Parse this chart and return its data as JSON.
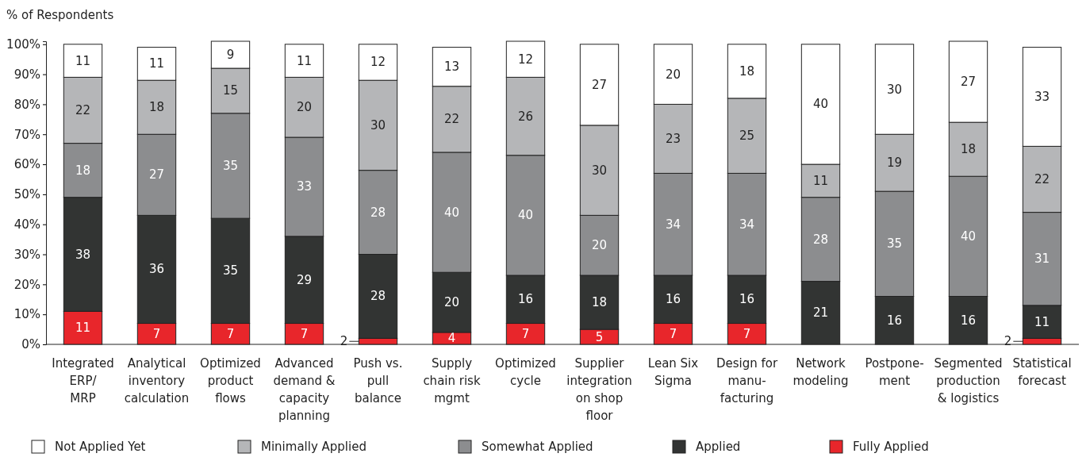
{
  "chart_data": {
    "type": "bar",
    "stacked": true,
    "ylabel": "% of Respondents",
    "categories": [
      "Integrated\nERP/\nMRP",
      "Analytical\ninventory\ncalculation",
      "Optimized\nproduct\nflows",
      "Advanced\ndemand &\ncapacity\nplanning",
      "Push vs.\npull\nbalance",
      "Supply\nchain risk\nmgmt",
      "Optimized\ncycle",
      "Supplier\nintegration\non shop\nfloor",
      "Lean Six\nSigma",
      "Design for\nmanu-\nfacturing",
      "Network\nmodeling",
      "Postpone-\nment",
      "Segmented\nproduction\n& logistics",
      "Statistical\nforecast"
    ],
    "series": [
      {
        "name": "Fully Applied",
        "color": "#e8262b",
        "values": [
          11,
          7,
          7,
          7,
          2,
          4,
          7,
          5,
          7,
          7,
          null,
          null,
          null,
          2
        ]
      },
      {
        "name": "Applied",
        "color": "#323433",
        "values": [
          38,
          36,
          35,
          29,
          28,
          20,
          16,
          18,
          16,
          16,
          21,
          16,
          16,
          11
        ]
      },
      {
        "name": "Somewhat Applied",
        "color": "#8c8d8f",
        "values": [
          18,
          27,
          35,
          33,
          28,
          40,
          40,
          20,
          34,
          34,
          28,
          35,
          40,
          31
        ]
      },
      {
        "name": "Minimally Applied",
        "color": "#b5b6b8",
        "values": [
          22,
          18,
          15,
          20,
          30,
          22,
          26,
          30,
          23,
          25,
          11,
          19,
          18,
          22
        ]
      },
      {
        "name": "Not Applied Yet",
        "color": "#ffffff",
        "values": [
          11,
          11,
          9,
          11,
          12,
          13,
          12,
          27,
          20,
          18,
          40,
          30,
          27,
          33
        ]
      }
    ],
    "ylim": [
      0,
      101
    ],
    "yticks": [
      {
        "value": 0,
        "label": "0%"
      },
      {
        "value": 10,
        "label": "10%"
      },
      {
        "value": 20,
        "label": "20%"
      },
      {
        "value": 30,
        "label": "30%"
      },
      {
        "value": 40,
        "label": "40%"
      },
      {
        "value": 50,
        "label": "50%"
      },
      {
        "value": 60,
        "label": "60%"
      },
      {
        "value": 70,
        "label": "70%"
      },
      {
        "value": 80,
        "label": "80%"
      },
      {
        "value": 90,
        "label": "90%"
      },
      {
        "value": 100,
        "label": "100%"
      }
    ],
    "data_labels": true,
    "grid": false,
    "legend": "bottom"
  }
}
